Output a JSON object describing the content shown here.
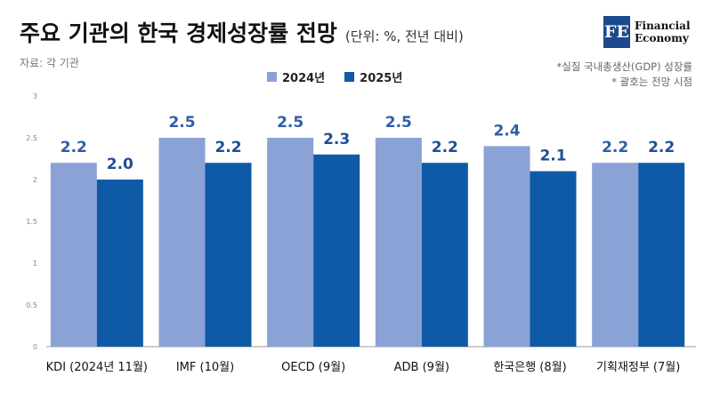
{
  "header": {
    "title": "주요 기관의 한국 경제성장률 전망",
    "unit": "(단위: %, 전년 대비)",
    "source": "자료: 각 기관",
    "logo_mark": "FE",
    "logo_line1": "Financial",
    "logo_line2": "Economy"
  },
  "notes": {
    "line1": "*실질 국내총생산(GDP) 성장률",
    "line2": "* 괄호는 전망 시점"
  },
  "colors": {
    "series_2024": "#8aa2d6",
    "series_2025": "#0e5aa7",
    "label_2024": "#2d5da8",
    "label_2025": "#1f4f93"
  },
  "chart_data": {
    "type": "bar",
    "title": "주요 기관의 한국 경제성장률 전망",
    "categories": [
      "KDI (2024년 11월)",
      "IMF (10월)",
      "OECD (9월)",
      "ADB (9월)",
      "한국은행 (8월)",
      "기획재정부 (7월)"
    ],
    "series": [
      {
        "name": "2024년",
        "values": [
          2.2,
          2.5,
          2.5,
          2.5,
          2.4,
          2.2
        ]
      },
      {
        "name": "2025년",
        "values": [
          2.0,
          2.2,
          2.3,
          2.2,
          2.1,
          2.2
        ]
      }
    ],
    "ylim": [
      0,
      3
    ],
    "yticks": [
      "0",
      "0.5",
      "1",
      "1.5",
      "2",
      "2.5",
      "3"
    ],
    "legend_position": "top-center",
    "grid": false
  }
}
